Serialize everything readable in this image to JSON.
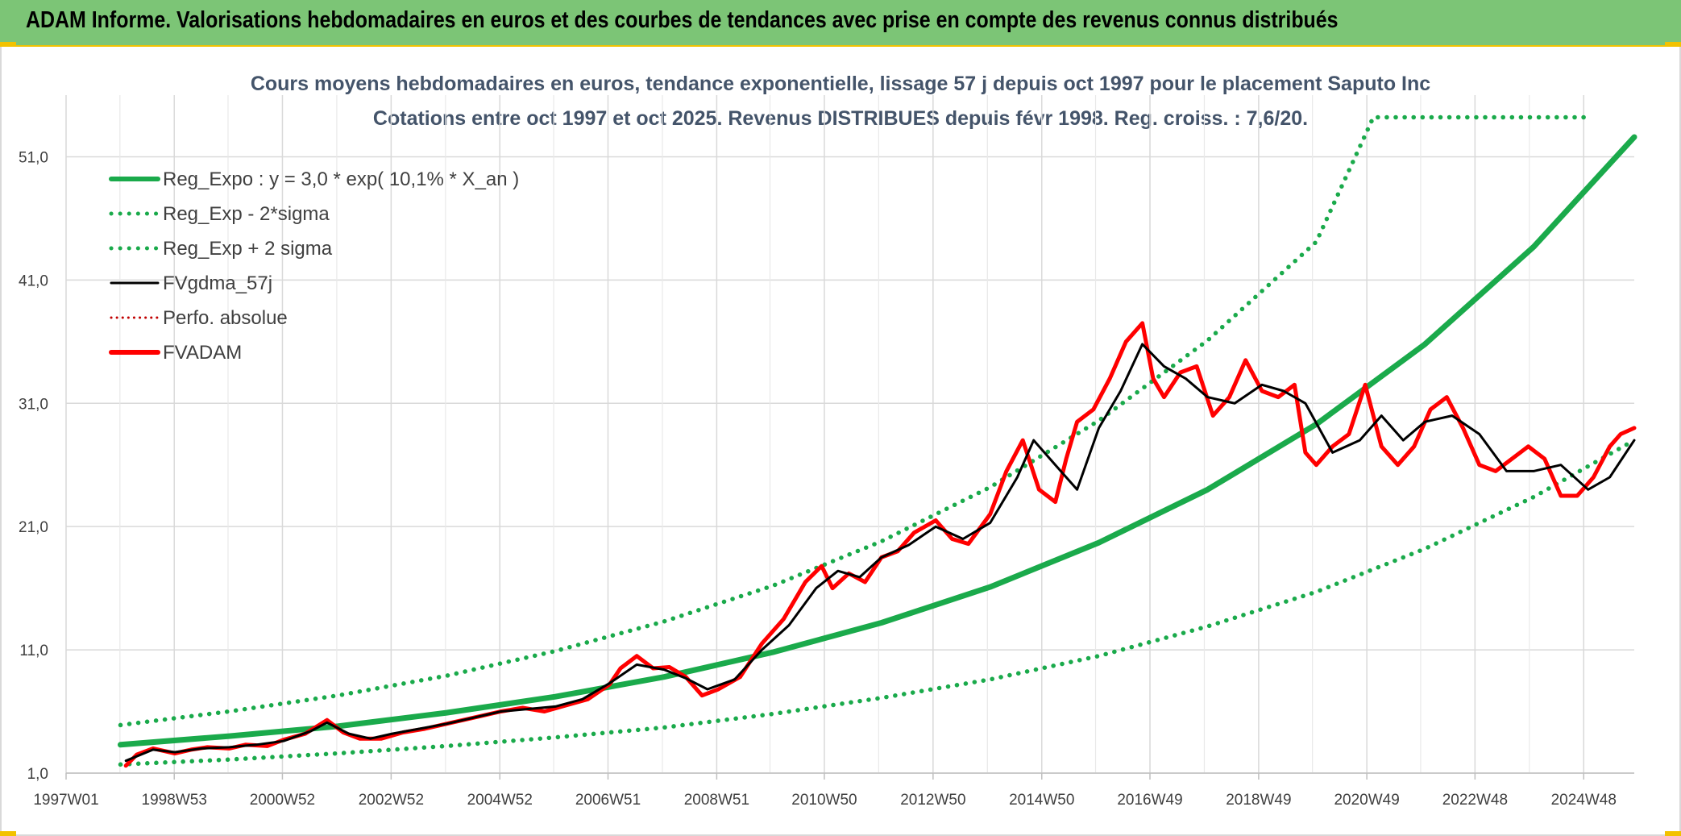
{
  "header": {
    "title": "ADAM Informe. Valorisations hebdomadaires en euros et des courbes de tendances avec prise en compte des revenus connus distribués"
  },
  "colors": {
    "banner": "#7cc576",
    "accent_yellow": "#f2c200",
    "trend_green": "#1aaa4b",
    "price_red": "#ff0000",
    "smooth_black": "#000000",
    "grid": "#d9d9d9"
  },
  "chart_data": {
    "type": "line",
    "title": "Cours moyens hebdomadaires en euros, tendance exponentielle, lissage 57 j depuis oct 1997 pour le placement Saputo Inc",
    "subtitle": "Cotations entre oct 1997 et oct 2025. Revenus DISTRIBUES depuis févr 1998. Reg. croiss. : 7,6/20.",
    "xlabel": "",
    "ylabel": "",
    "x_unit": "year",
    "xlim": [
      1997.0,
      2025.85
    ],
    "ylim": [
      1.0,
      56.0
    ],
    "x_ticks": [
      {
        "label": "1997W01",
        "x": 1997.0
      },
      {
        "label": "1998W53",
        "x": 1998.99
      },
      {
        "label": "2000W52",
        "x": 2000.98
      },
      {
        "label": "2002W52",
        "x": 2002.98
      },
      {
        "label": "2004W52",
        "x": 2004.98
      },
      {
        "label": "2006W51",
        "x": 2006.97
      },
      {
        "label": "2008W51",
        "x": 2008.97
      },
      {
        "label": "2010W50",
        "x": 2010.95
      },
      {
        "label": "2012W50",
        "x": 2012.95
      },
      {
        "label": "2014W50",
        "x": 2014.95
      },
      {
        "label": "2016W49",
        "x": 2016.94
      },
      {
        "label": "2018W49",
        "x": 2018.94
      },
      {
        "label": "2020W49",
        "x": 2020.93
      },
      {
        "label": "2022W48",
        "x": 2022.92
      },
      {
        "label": "2024W48",
        "x": 2024.92
      }
    ],
    "y_ticks": [
      {
        "label": "1,0",
        "y": 1.0
      },
      {
        "label": "11,0",
        "y": 11.0
      },
      {
        "label": "21,0",
        "y": 21.0
      },
      {
        "label": "31,0",
        "y": 31.0
      },
      {
        "label": "41,0",
        "y": 41.0
      },
      {
        "label": "51,0",
        "y": 51.0
      }
    ],
    "grid": true,
    "legend_position": "top-left",
    "legend": [
      {
        "label": "Reg_Expo : y = 3,0 * exp( 10,1% *  X_an )",
        "color": "#1aaa4b",
        "style": "solid-thick"
      },
      {
        "label": "Reg_Exp - 2*sigma",
        "color": "#1aaa4b",
        "style": "dotted"
      },
      {
        "label": "Reg_Exp + 2 sigma",
        "color": "#1aaa4b",
        "style": "dotted"
      },
      {
        "label": "FVgdma_57j",
        "color": "#000000",
        "style": "solid"
      },
      {
        "label": "Perfo. absolue",
        "color": "#c00000",
        "style": "dotted-thin"
      },
      {
        "label": "FVADAM",
        "color": "#ff0000",
        "style": "solid-thick"
      }
    ],
    "series": [
      {
        "name": "Reg_Expo : y = 3,0 * exp( 10,1% *  X_an )",
        "style": "solid-thick",
        "color": "#1aaa4b",
        "x": [
          1998.0,
          2000.0,
          2002.0,
          2004.0,
          2006.0,
          2008.0,
          2010.0,
          2012.0,
          2014.0,
          2016.0,
          2018.0,
          2020.0,
          2022.0,
          2024.0,
          2025.85
        ],
        "y": [
          3.3,
          4.0,
          4.8,
          5.9,
          7.2,
          8.8,
          10.8,
          13.2,
          16.1,
          19.7,
          24.0,
          29.3,
          35.8,
          43.7,
          52.6
        ]
      },
      {
        "name": "Reg_Exp - 2*sigma",
        "style": "dotted",
        "color": "#1aaa4b",
        "x": [
          1998.0,
          2000.0,
          2002.0,
          2004.0,
          2006.0,
          2008.0,
          2010.0,
          2012.0,
          2014.0,
          2016.0,
          2018.0,
          2020.0,
          2022.0,
          2024.0,
          2025.85
        ],
        "y": [
          1.7,
          2.1,
          2.6,
          3.2,
          3.9,
          4.7,
          5.8,
          7.1,
          8.6,
          10.5,
          12.9,
          15.7,
          19.2,
          23.4,
          28.0
        ]
      },
      {
        "name": "Reg_Exp + 2 sigma",
        "style": "dotted",
        "color": "#1aaa4b",
        "x": [
          1998.0,
          2000.0,
          2002.0,
          2004.0,
          2006.0,
          2008.0,
          2010.0,
          2012.0,
          2014.0,
          2016.0,
          2018.0,
          2020.0,
          2021.05,
          2021.08,
          2025.0
        ],
        "y": [
          4.9,
          6.0,
          7.3,
          8.9,
          10.9,
          13.3,
          16.2,
          19.8,
          24.2,
          29.6,
          36.1,
          44.1,
          54.2,
          54.2,
          54.2
        ]
      },
      {
        "name": "FVgdma_57j",
        "style": "solid",
        "color": "#000000",
        "x": [
          1998.1,
          1998.6,
          1999.0,
          1999.5,
          2000.0,
          2000.5,
          2001.0,
          2001.5,
          2001.8,
          2002.2,
          2002.6,
          2003.0,
          2003.5,
          2004.0,
          2004.5,
          2005.0,
          2005.5,
          2006.0,
          2006.5,
          2007.0,
          2007.5,
          2008.0,
          2008.4,
          2008.8,
          2009.3,
          2009.8,
          2010.3,
          2010.8,
          2011.2,
          2011.6,
          2012.0,
          2012.5,
          2013.0,
          2013.5,
          2014.0,
          2014.5,
          2014.8,
          2015.2,
          2015.6,
          2016.0,
          2016.4,
          2016.8,
          2017.2,
          2017.6,
          2018.0,
          2018.5,
          2019.0,
          2019.4,
          2019.8,
          2020.3,
          2020.8,
          2021.2,
          2021.6,
          2022.0,
          2022.5,
          2023.0,
          2023.5,
          2024.0,
          2024.5,
          2025.0,
          2025.4,
          2025.85
        ],
        "y": [
          2.0,
          2.9,
          2.7,
          3.0,
          3.1,
          3.3,
          3.6,
          4.4,
          5.1,
          4.2,
          3.8,
          4.2,
          4.6,
          5.0,
          5.5,
          6.0,
          6.2,
          6.4,
          7.0,
          8.3,
          9.8,
          9.4,
          8.7,
          7.8,
          8.6,
          11.0,
          13.0,
          16.0,
          17.4,
          16.9,
          18.5,
          19.5,
          21.0,
          20.0,
          21.3,
          25.0,
          28.0,
          26.0,
          24.0,
          29.0,
          32.0,
          35.8,
          34.0,
          33.0,
          31.5,
          31.0,
          32.5,
          32.0,
          31.0,
          27.0,
          28.0,
          30.0,
          28.0,
          29.5,
          30.0,
          28.5,
          25.5,
          25.5,
          26.0,
          24.0,
          25.0,
          28.0
        ]
      },
      {
        "name": "FVADAM",
        "style": "solid-thick",
        "color": "#ff0000",
        "x": [
          1998.1,
          1998.3,
          1998.6,
          1999.0,
          1999.3,
          1999.6,
          2000.0,
          2000.3,
          2000.7,
          2001.0,
          2001.4,
          2001.8,
          2002.1,
          2002.4,
          2002.8,
          2003.2,
          2003.6,
          2004.0,
          2004.5,
          2005.0,
          2005.4,
          2005.8,
          2006.2,
          2006.6,
          2007.0,
          2007.2,
          2007.5,
          2007.8,
          2008.1,
          2008.4,
          2008.7,
          2009.0,
          2009.4,
          2009.8,
          2010.2,
          2010.6,
          2010.9,
          2011.1,
          2011.4,
          2011.7,
          2012.0,
          2012.3,
          2012.6,
          2013.0,
          2013.3,
          2013.6,
          2014.0,
          2014.3,
          2014.6,
          2014.9,
          2015.2,
          2015.4,
          2015.6,
          2015.9,
          2016.2,
          2016.5,
          2016.8,
          2017.0,
          2017.2,
          2017.5,
          2017.8,
          2018.1,
          2018.4,
          2018.7,
          2019.0,
          2019.3,
          2019.6,
          2019.8,
          2020.0,
          2020.3,
          2020.6,
          2020.9,
          2021.2,
          2021.5,
          2021.8,
          2022.1,
          2022.4,
          2022.7,
          2023.0,
          2023.3,
          2023.6,
          2023.9,
          2024.2,
          2024.5,
          2024.8,
          2025.1,
          2025.4,
          2025.6,
          2025.85
        ],
        "y": [
          1.6,
          2.5,
          3.0,
          2.6,
          2.9,
          3.1,
          3.0,
          3.3,
          3.2,
          3.7,
          4.2,
          5.3,
          4.3,
          3.8,
          3.8,
          4.3,
          4.6,
          5.0,
          5.5,
          6.0,
          6.3,
          6.0,
          6.5,
          7.0,
          8.2,
          9.5,
          10.5,
          9.5,
          9.6,
          8.8,
          7.3,
          7.8,
          8.8,
          11.5,
          13.5,
          16.5,
          17.8,
          16.0,
          17.2,
          16.5,
          18.5,
          19.0,
          20.5,
          21.5,
          20.0,
          19.6,
          22.0,
          25.5,
          28.0,
          24.0,
          23.0,
          26.5,
          29.5,
          30.5,
          33.0,
          36.0,
          37.5,
          33.0,
          31.5,
          33.5,
          34.0,
          30.0,
          31.5,
          34.5,
          32.0,
          31.5,
          32.5,
          27.0,
          26.0,
          27.5,
          28.5,
          32.5,
          27.5,
          26.0,
          27.5,
          30.5,
          31.5,
          29.0,
          26.0,
          25.5,
          26.5,
          27.5,
          26.5,
          23.5,
          23.5,
          25.0,
          27.5,
          28.5,
          29.0
        ]
      }
    ]
  }
}
